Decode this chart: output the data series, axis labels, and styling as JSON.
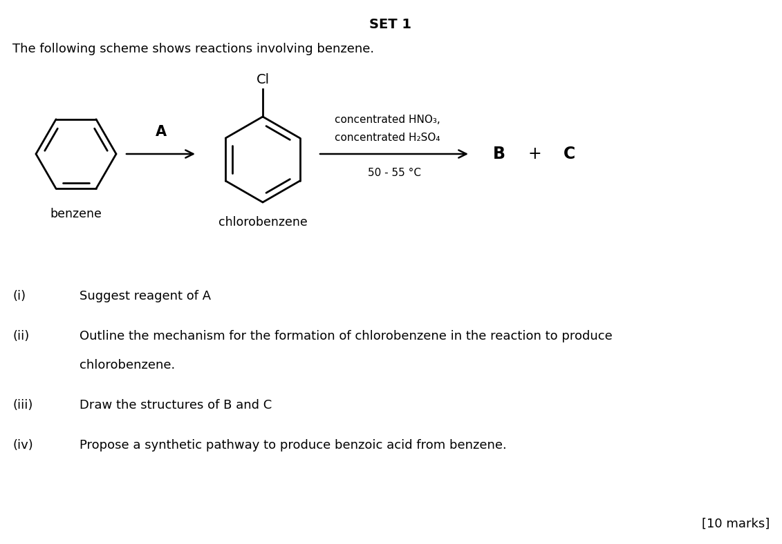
{
  "title": "SET 1",
  "intro_text": "The following scheme shows reactions involving benzene.",
  "label_benzene": "benzene",
  "label_chlorobenzene": "chlorobenzene",
  "label_A": "A",
  "label_B": "B",
  "label_C": "C",
  "label_plus": "+",
  "reagent_line1": "concentrated HNO₃,",
  "reagent_line2": "concentrated H₂SO₄",
  "reagent_line3": "50 - 55 °C",
  "marks": "[10 marks]",
  "bg_color": "#ffffff",
  "text_color": "#000000",
  "title_fontsize": 14,
  "body_fontsize": 13,
  "question_fontsize": 13
}
